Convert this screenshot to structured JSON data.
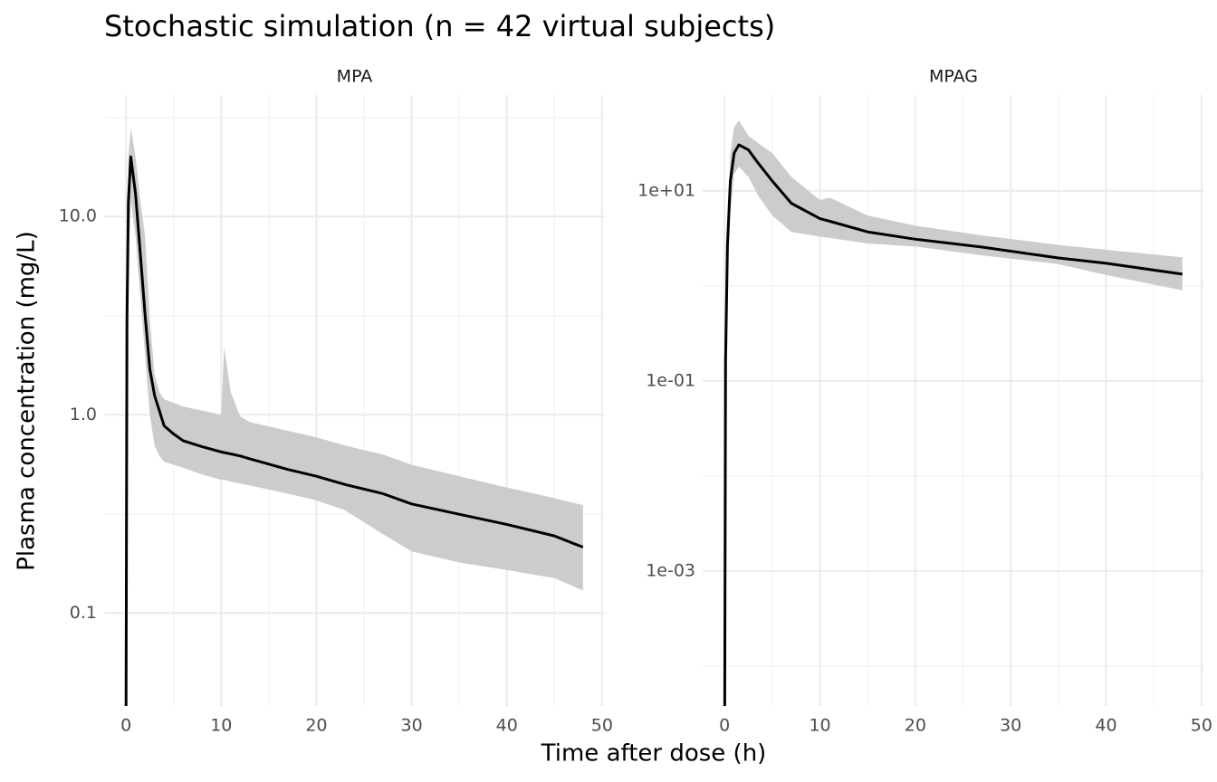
{
  "title": "Stochastic simulation (n = 42 virtual subjects)",
  "x_label": "Time after dose (h)",
  "y_label": "Plasma concentration (mg/L)",
  "chart_data": [
    {
      "type": "line",
      "subtitle": "MPA",
      "log_y": true,
      "grid": true,
      "xlim": [
        -2.3,
        50.3
      ],
      "xticks": [
        0,
        10,
        20,
        30,
        40,
        50
      ],
      "minor_xticks": [
        5,
        15,
        25,
        35,
        45
      ],
      "ylim": [
        0.034,
        41
      ],
      "yticks": [
        {
          "value": 10,
          "label": "10.0"
        },
        {
          "value": 1,
          "label": "1.0"
        },
        0.1
      ],
      "minor_yticks": [
        31.62,
        3.162,
        0.3162
      ],
      "x": [
        0,
        0.1,
        0.25,
        0.5,
        1,
        1.5,
        2,
        2.5,
        3,
        3.5,
        4,
        5,
        6,
        8,
        10,
        10.3,
        11,
        12,
        13,
        17,
        20,
        23,
        27,
        30,
        35,
        40,
        45,
        48
      ],
      "ribbon": {
        "color": "#cccccc",
        "lower": [
          0.03,
          1,
          6,
          12,
          8,
          4,
          2,
          1,
          0.7,
          0.62,
          0.58,
          0.56,
          0.54,
          0.5,
          0.47,
          0.47,
          0.46,
          0.45,
          0.44,
          0.4,
          0.37,
          0.33,
          0.25,
          0.205,
          0.18,
          0.165,
          0.15,
          0.13
        ],
        "upper": [
          0.03,
          6,
          20,
          28,
          20,
          12,
          8,
          3,
          1.6,
          1.3,
          1.2,
          1.15,
          1.1,
          1.05,
          1.0,
          2.2,
          1.3,
          0.98,
          0.92,
          0.83,
          0.77,
          0.7,
          0.63,
          0.56,
          0.49,
          0.43,
          0.38,
          0.35
        ]
      },
      "series": [
        {
          "color": "#000000",
          "values": [
            0.03,
            3,
            12,
            20,
            13,
            6.5,
            3.2,
            1.7,
            1.25,
            1.05,
            0.88,
            0.8,
            0.74,
            0.69,
            0.65,
            0.645,
            0.635,
            0.62,
            0.6,
            0.53,
            0.49,
            0.445,
            0.4,
            0.355,
            0.315,
            0.28,
            0.245,
            0.215
          ]
        }
      ]
    },
    {
      "type": "line",
      "subtitle": "MPAG",
      "log_y": true,
      "grid": true,
      "xlim": [
        -2.3,
        50.3
      ],
      "xticks": [
        0,
        10,
        20,
        30,
        40,
        50
      ],
      "minor_xticks": [
        5,
        15,
        25,
        35,
        45
      ],
      "ylim": [
        3.8e-05,
        102
      ],
      "yticks": [
        {
          "value": 10,
          "label": "1e+01"
        },
        {
          "value": 0.1,
          "label": "1e-01"
        },
        {
          "value": 0.001,
          "label": "1e-03"
        }
      ],
      "minor_yticks": [
        1,
        0.01,
        0.0001
      ],
      "x": [
        0,
        0.1,
        0.3,
        0.6,
        1,
        1.5,
        2.5,
        3.5,
        5,
        7,
        10,
        11,
        15,
        20,
        27,
        35,
        40,
        48
      ],
      "ribbon": {
        "color": "#cccccc",
        "lower": [
          1e-05,
          0.05,
          1,
          6,
          15,
          18,
          14,
          9,
          5.5,
          3.7,
          3.3,
          3.2,
          2.8,
          2.6,
          2.1,
          1.7,
          1.3,
          0.9
        ],
        "upper": [
          1e-05,
          0.5,
          5,
          25,
          47,
          55,
          38,
          32,
          25,
          14,
          8,
          8.5,
          5.5,
          4.3,
          3.4,
          2.7,
          2.4,
          2.0
        ]
      },
      "series": [
        {
          "color": "#000000",
          "values": [
            1e-05,
            0.16,
            2.7,
            12.7,
            25,
            30.5,
            27,
            19.7,
            12.7,
            7.4,
            5.1,
            4.8,
            3.7,
            3.1,
            2.56,
            1.97,
            1.73,
            1.33
          ]
        }
      ]
    }
  ]
}
